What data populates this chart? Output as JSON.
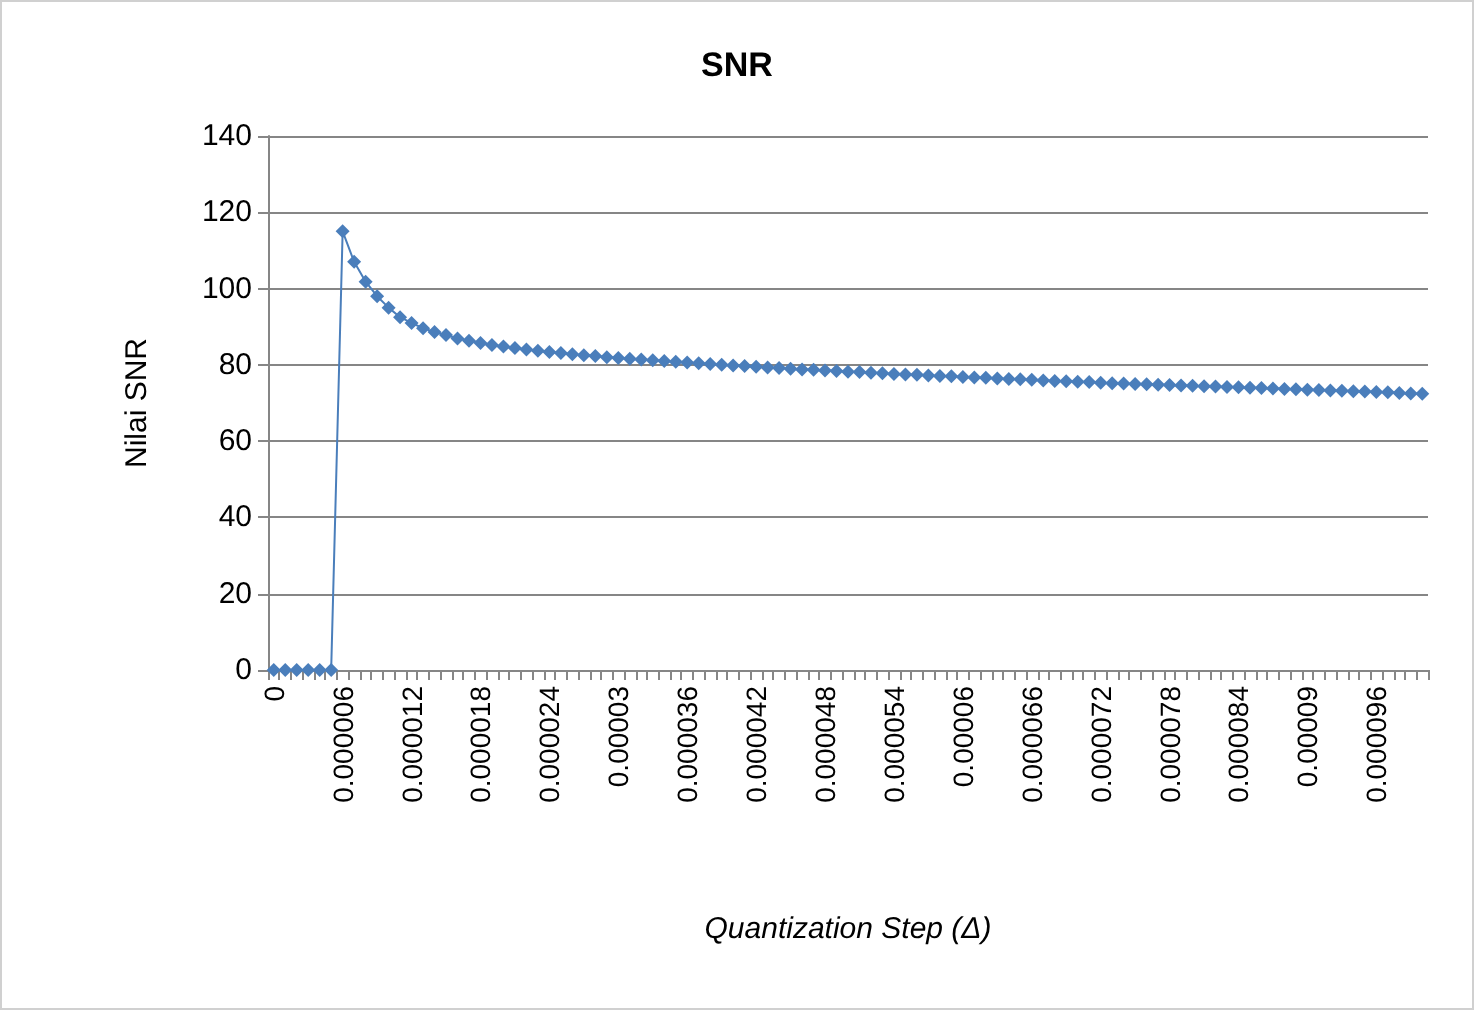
{
  "chart_data": {
    "type": "line",
    "title": "SNR",
    "xlabel": "Quantization Step (Δ)",
    "ylabel": "Nilai SNR",
    "categories": [
      "0",
      null,
      null,
      null,
      null,
      null,
      "0.000006",
      null,
      null,
      null,
      null,
      null,
      "0.000012",
      null,
      null,
      null,
      null,
      null,
      "0.000018",
      null,
      null,
      null,
      null,
      null,
      "0.000024",
      null,
      null,
      null,
      null,
      null,
      "0.00003",
      null,
      null,
      null,
      null,
      null,
      "0.000036",
      null,
      null,
      null,
      null,
      null,
      "0.000042",
      null,
      null,
      null,
      null,
      null,
      "0.000048",
      null,
      null,
      null,
      null,
      null,
      "0.000054",
      null,
      null,
      null,
      null,
      null,
      "0.00006",
      null,
      null,
      null,
      null,
      null,
      "0.000066",
      null,
      null,
      null,
      null,
      null,
      "0.000072",
      null,
      null,
      null,
      null,
      null,
      "0.000078",
      null,
      null,
      null,
      null,
      null,
      "0.000084",
      null,
      null,
      null,
      null,
      null,
      "0.00009",
      null,
      null,
      null,
      null,
      null,
      "0.000096",
      null,
      null,
      null,
      null
    ],
    "series": [
      {
        "color": "#4a7ebb",
        "values": [
          0,
          0,
          0,
          0,
          0,
          0,
          115,
          107,
          101.8,
          98,
          95,
          92.5,
          91,
          89.6,
          88.6,
          87.8,
          86.9,
          86.3,
          85.7,
          85.2,
          84.8,
          84.4,
          84,
          83.7,
          83.4,
          83.1,
          82.8,
          82.5,
          82.3,
          82,
          81.8,
          81.6,
          81.4,
          81.2,
          81,
          80.8,
          80.6,
          80.4,
          80.2,
          80,
          79.8,
          79.7,
          79.5,
          79.3,
          79.2,
          79,
          78.8,
          78.7,
          78.5,
          78.4,
          78.2,
          78.1,
          77.9,
          77.8,
          77.6,
          77.5,
          77.4,
          77.2,
          77.1,
          77,
          76.8,
          76.7,
          76.6,
          76.4,
          76.3,
          76.2,
          76.1,
          75.9,
          75.8,
          75.7,
          75.6,
          75.5,
          75.3,
          75.2,
          75.1,
          75,
          74.9,
          74.8,
          74.7,
          74.6,
          74.5,
          74.4,
          74.3,
          74.2,
          74.1,
          74,
          73.9,
          73.8,
          73.7,
          73.6,
          73.5,
          73.4,
          73.3,
          73.2,
          73.1,
          73,
          72.9,
          72.8,
          72.6,
          72.5,
          72.4
        ]
      }
    ],
    "ylim": [
      0,
      140
    ],
    "yticks": [
      0,
      20,
      40,
      60,
      80,
      100,
      120,
      140
    ],
    "grid": "y",
    "marker": "diamond",
    "line_style": "solid"
  }
}
